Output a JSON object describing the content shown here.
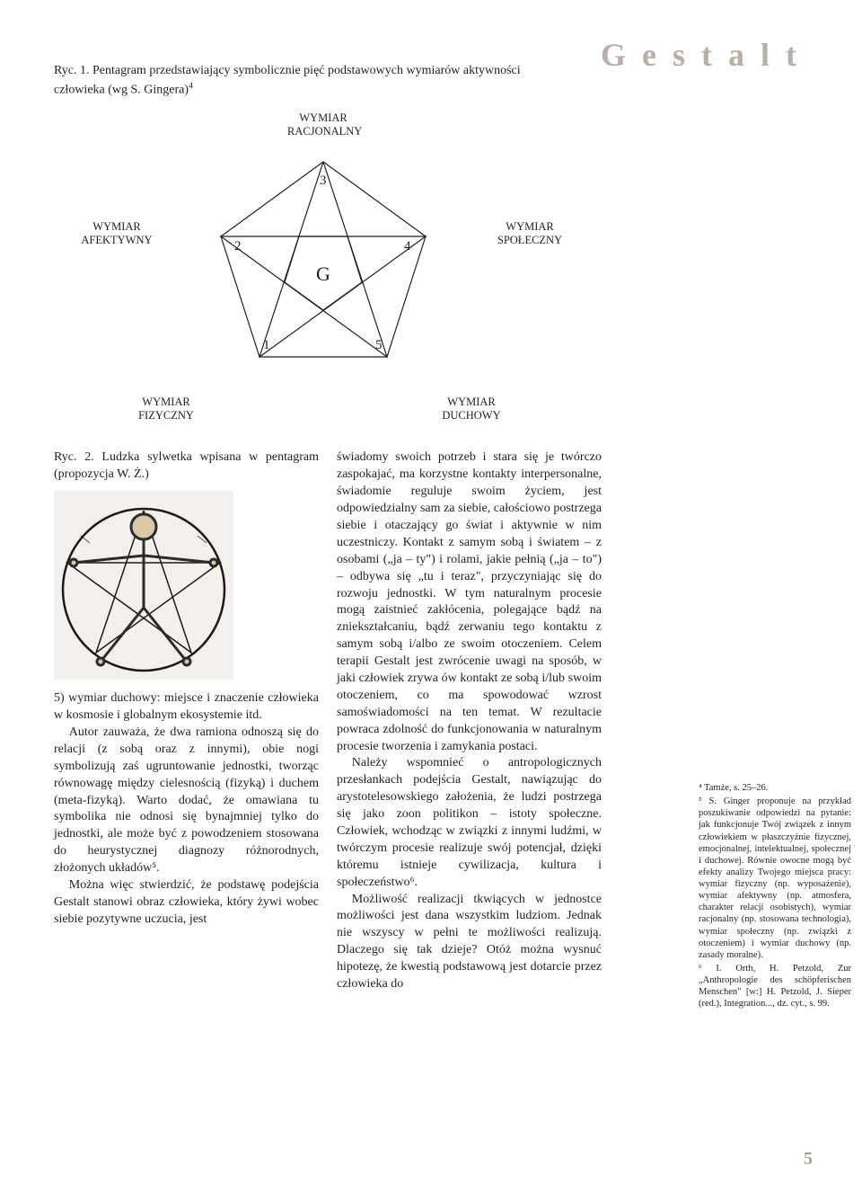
{
  "brand": "Gestalt",
  "figure1": {
    "caption": "Ryc. 1. Pentagram przedstawiający symbolicznie pięć podstawowych wymiarów aktywności człowieka (wg S. Gingera)",
    "sup": "4",
    "labels": {
      "top": "WYMIAR\nRACJONALNY",
      "left": "WYMIAR\nAFEKTYWNY",
      "right": "WYMIAR\nSPOŁECZNY",
      "bottomLeft": "WYMIAR\nFIZYCZNY",
      "bottomRight": "WYMIAR\nDUCHOWY"
    },
    "nodeNumbers": [
      "1",
      "2",
      "3",
      "4",
      "5"
    ],
    "center": "G",
    "colors": {
      "stroke": "#231f20",
      "fill": "none",
      "bg": "#ffffff"
    }
  },
  "figure2": {
    "caption": "Ryc. 2. Ludzka sylwetka wpisana w pentagram (propozycja W. Ż.)"
  },
  "body": {
    "leftCol": [
      "5) wymiar duchowy: miejsce i znaczenie człowieka w kosmosie i globalnym ekosystemie itd.",
      "Autor zauważa, że dwa ramiona odnoszą się do relacji (z sobą oraz z innymi), obie nogi symbolizują zaś ugruntowanie jednostki, tworząc równowagę między cielesnością (fizyką) i duchem (meta-fizyką). Warto dodać, że omawiana tu symbolika nie odnosi się bynajmniej tylko do jednostki, ale może być z powodzeniem stosowana do heurystycznej diagnozy różnorodnych, złożonych układów⁵.",
      "Można więc stwierdzić, że podstawę podejścia Gestalt stanowi obraz człowieka, który żywi wobec siebie pozytywne uczucia, jest"
    ],
    "rightCol": [
      "świadomy swoich potrzeb i stara się je twórczo zaspokajać, ma korzystne kontakty interpersonalne, świadomie reguluje swoim życiem, jest odpowiedzialny sam za siebie, całościowo postrzega siebie i otaczający go świat i aktywnie w nim uczestniczy. Kontakt z samym sobą i światem – z osobami („ja – ty\") i rolami, jakie pełnią („ja – to\") – odbywa się „tu i teraz\", przyczyniając się do rozwoju jednostki. W tym naturalnym procesie mogą zaistnieć zakłócenia, polegające bądź na zniekształcaniu, bądź zerwaniu tego kontaktu z samym sobą i/albo ze swoim otoczeniem. Celem terapii Gestalt jest zwrócenie uwagi na sposób, w jaki człowiek zrywa ów kontakt ze sobą i/lub swoim otoczeniem, co ma spowodować wzrost samoświadomości na ten temat. W rezultacie powraca zdolność do funkcjonowania w naturalnym procesie tworzenia i zamykania postaci.",
      "Należy wspomnieć o antropologicznych przesłankach podejścia Gestalt, nawiązując do arystotelesowskiego założenia, że ludzi postrzega się jako zoon politikon – istoty społeczne. Człowiek, wchodząc w związki z innymi ludźmi, w twórczym procesie realizuje swój potencjał, dzięki któremu istnieje cywilizacja, kultura i społeczeństwo⁶.",
      "Możliwość realizacji tkwiących w jednostce możliwości jest dana wszystkim ludziom. Jednak nie wszyscy w pełni te możliwości realizują. Dlaczego się tak dzieje? Otóż można wysnuć hipotezę, że kwestią podstawową jest dotarcie przez człowieka do"
    ]
  },
  "footnotes": [
    "⁴ Tamże, s. 25–26.",
    "⁵ S. Ginger proponuje na przykład poszukiwanie odpowiedzi na pytanie: jak funkcjonuje Twój związek z innym człowiekiem w płaszczyźnie fizycznej, emocjonalnej, intelektualnej, społecznej i duchowej. Równie owocne mogą być efekty analizy Twojego miejsca pracy: wymiar fizyczny (np. wyposażenie), wymiar afektywny (np. atmosfera, charakter relacji osobistych), wymiar racjonalny (np. stosowana technologia), wymiar społeczny (np. związki z otoczeniem) i wymiar duchowy (np. zasady moralne).",
    "⁶ I. Orth, H. Petzold, Zur „Anthropologie des schöpferischen Menschen\" [w:] H. Petzold, J. Sieper (red.), Integration..., dz. cyt., s. 99."
  ],
  "pageNumber": "5"
}
